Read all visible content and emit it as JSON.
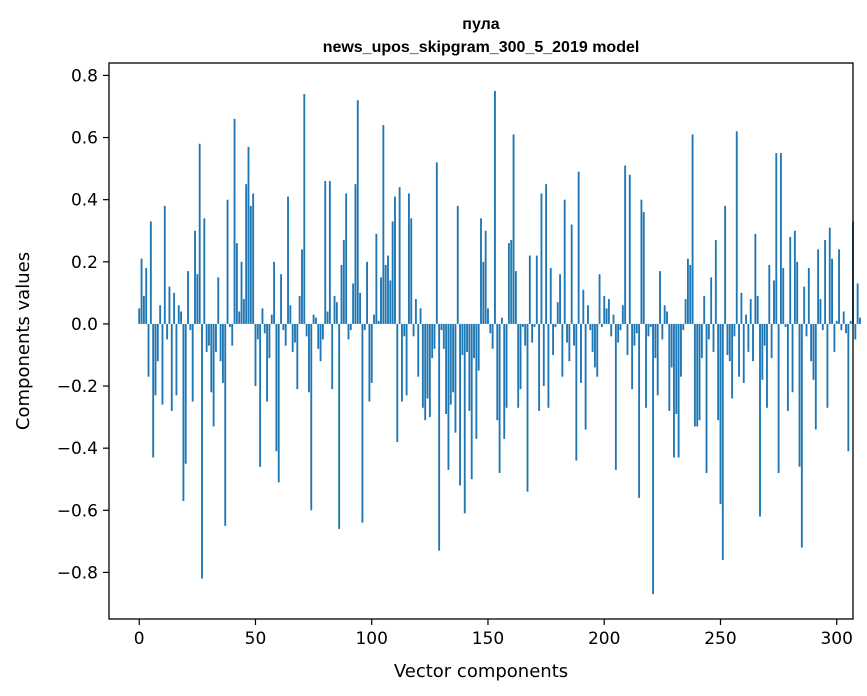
{
  "chart_data": {
    "type": "bar",
    "title_line1": "пула",
    "title_line2": "news_upos_skipgram_300_5_2019 model",
    "xlabel": "Vector components",
    "ylabel": "Components values",
    "xlim": [
      -13,
      307
    ],
    "ylim": [
      -0.95,
      0.84
    ],
    "x_ticks": [
      0,
      50,
      100,
      150,
      200,
      250,
      300
    ],
    "x_tick_labels": [
      "0",
      "50",
      "100",
      "150",
      "200",
      "250",
      "300"
    ],
    "y_ticks": [
      -0.8,
      -0.6,
      -0.4,
      -0.2,
      0.0,
      0.2,
      0.4,
      0.6,
      0.8
    ],
    "y_tick_labels": [
      "−0.8",
      "−0.6",
      "−0.4",
      "−0.2",
      "0.0",
      "0.2",
      "0.4",
      "0.6",
      "0.8"
    ],
    "grid": false,
    "bar_color": "#1f77b4",
    "values": [
      0.05,
      0.21,
      0.09,
      0.18,
      -0.17,
      0.33,
      -0.43,
      -0.23,
      -0.12,
      0.06,
      -0.26,
      0.38,
      -0.05,
      0.12,
      -0.28,
      0.1,
      -0.23,
      0.06,
      0.04,
      -0.57,
      -0.45,
      0.17,
      -0.02,
      -0.25,
      0.3,
      0.16,
      0.58,
      -0.82,
      0.34,
      -0.09,
      -0.07,
      -0.22,
      -0.33,
      -0.09,
      0.15,
      -0.12,
      -0.19,
      -0.65,
      0.4,
      -0.01,
      -0.07,
      0.66,
      0.26,
      0.04,
      0.2,
      0.08,
      0.45,
      0.57,
      0.38,
      0.42,
      -0.2,
      -0.05,
      -0.46,
      0.05,
      -0.03,
      -0.25,
      -0.11,
      0.03,
      0.2,
      -0.41,
      -0.51,
      0.16,
      -0.02,
      -0.07,
      0.41,
      0.06,
      -0.09,
      -0.06,
      -0.21,
      0.09,
      0.24,
      0.74,
      -0.04,
      -0.22,
      -0.6,
      0.03,
      0.02,
      -0.08,
      -0.12,
      -0.05,
      0.46,
      0.04,
      0.46,
      -0.21,
      0.09,
      0.07,
      -0.66,
      0.19,
      0.27,
      0.42,
      -0.05,
      -0.02,
      0.13,
      0.45,
      0.72,
      0.1,
      -0.64,
      -0.02,
      0.2,
      -0.25,
      -0.19,
      0.03,
      0.29,
      0.01,
      0.15,
      0.64,
      0.19,
      0.22,
      0.14,
      0.33,
      0.41,
      -0.38,
      0.44,
      -0.25,
      -0.04,
      -0.23,
      0.42,
      0.34,
      -0.04,
      0.08,
      -0.17,
      0.05,
      -0.27,
      -0.31,
      -0.24,
      -0.3,
      -0.11,
      -0.08,
      0.52,
      -0.73,
      -0.02,
      -0.08,
      -0.29,
      -0.47,
      -0.26,
      -0.22,
      -0.35,
      0.38,
      -0.52,
      -0.1,
      -0.61,
      -0.09,
      -0.28,
      -0.5,
      -0.11,
      -0.37,
      -0.15,
      0.34,
      0.2,
      0.3,
      0.05,
      -0.03,
      -0.08,
      0.75,
      -0.31,
      -0.48,
      0.02,
      -0.37,
      -0.27,
      0.26,
      0.27,
      0.61,
      0.17,
      -0.27,
      -0.21,
      -0.01,
      -0.07,
      -0.54,
      0.22,
      -0.06,
      -0.01,
      0.22,
      -0.28,
      0.42,
      -0.2,
      0.45,
      -0.27,
      0.18,
      -0.1,
      -0.01,
      0.07,
      0.16,
      -0.17,
      0.4,
      -0.06,
      -0.12,
      0.32,
      -0.07,
      -0.44,
      0.49,
      -0.19,
      0.11,
      -0.34,
      0.06,
      -0.02,
      -0.09,
      -0.14,
      -0.17,
      0.16,
      -0.01,
      0.09,
      0.05,
      0.08,
      -0.04,
      0.03,
      -0.47,
      -0.06,
      -0.02,
      0.06,
      0.51,
      -0.1,
      0.48,
      -0.21,
      -0.07,
      -0.03,
      -0.56,
      0.4,
      0.36,
      -0.27,
      -0.04,
      -0.01,
      -0.87,
      -0.11,
      -0.23,
      0.17,
      -0.05,
      0.06,
      0.04,
      -0.28,
      -0.14,
      -0.43,
      -0.29,
      -0.43,
      -0.17,
      -0.02,
      0.08,
      0.21,
      0.19,
      0.61,
      -0.33,
      -0.33,
      -0.31,
      -0.11,
      0.09,
      -0.48,
      -0.05,
      0.15,
      -0.09,
      0.27,
      -0.31,
      -0.58,
      -0.76,
      0.38,
      -0.1,
      -0.12,
      -0.24,
      -0.04,
      0.62,
      -0.17,
      0.1,
      -0.19,
      0.03,
      -0.09,
      0.08,
      -0.12,
      0.29,
      0.09,
      -0.62,
      -0.18,
      -0.07,
      -0.27,
      0.19,
      -0.11,
      0.14,
      0.55,
      -0.48,
      0.55,
      0.18,
      -0.01,
      -0.28,
      0.28,
      -0.22,
      0.3,
      0.2,
      -0.46,
      -0.72,
      0.12,
      -0.04,
      0.18,
      -0.12,
      -0.18,
      -0.34,
      0.24,
      0.08,
      -0.02,
      0.27,
      -0.27,
      0.31,
      0.21,
      -0.09,
      0.01,
      0.24,
      -0.02,
      0.04,
      -0.03,
      -0.41,
      0.01,
      0.33,
      -0.05,
      0.13,
      0.02
    ]
  }
}
